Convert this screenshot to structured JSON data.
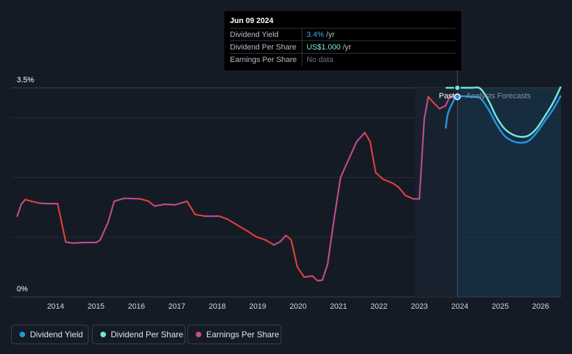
{
  "tooltip": {
    "date": "Jun 09 2024",
    "rows": [
      {
        "label": "Dividend Yield",
        "value": "3.4%",
        "unit": " /yr"
      },
      {
        "label": "Dividend Per Share",
        "value": "US$1.000",
        "unit": " /yr"
      },
      {
        "label": "Earnings Per Share",
        "value": "No data",
        "unit": ""
      }
    ]
  },
  "markers": {
    "past": "Past",
    "forecast": "Analysts Forecasts"
  },
  "legend": [
    {
      "label": "Dividend Yield",
      "color": "#2394df"
    },
    {
      "label": "Dividend Per Share",
      "color": "#6ee8d6"
    },
    {
      "label": "Earnings Per Share",
      "color": "#c04c93"
    }
  ],
  "chart_data": {
    "type": "line",
    "title": "",
    "xlabel": "",
    "ylabel": "",
    "x_ticks": [
      "2014",
      "2015",
      "2016",
      "2017",
      "2018",
      "2019",
      "2020",
      "2021",
      "2022",
      "2023",
      "2024",
      "2025",
      "2026"
    ],
    "y_tick_labels": [
      "0%",
      "3.5%"
    ],
    "xlim": [
      2013.4,
      2027.0
    ],
    "ylim": [
      0,
      3.5
    ],
    "past_split_x": 2024.44,
    "forecast_start_x": 2023.4,
    "colors": {
      "dividend_yield": "#2394df",
      "dividend_per_share": "#6ee8d6",
      "eps_up": "#c04c93",
      "eps_down": "#e0403f",
      "forecast_band": "#1c3a57"
    },
    "series": [
      {
        "name": "Earnings Per Share",
        "unit": "relative",
        "x": [
          2013.55,
          2013.65,
          2013.75,
          2013.9,
          2014.1,
          2014.3,
          2014.55,
          2014.75,
          2014.9,
          2015.2,
          2015.5,
          2015.6,
          2015.8,
          2015.95,
          2016.2,
          2016.6,
          2016.8,
          2016.95,
          2017.2,
          2017.45,
          2017.6,
          2017.75,
          2017.95,
          2018.2,
          2018.55,
          2018.75,
          2019.0,
          2019.25,
          2019.45,
          2019.7,
          2019.9,
          2020.05,
          2020.2,
          2020.33,
          2020.48,
          2020.65,
          2020.85,
          2020.98,
          2021.1,
          2021.23,
          2021.4,
          2021.55,
          2021.75,
          2021.95,
          2022.15,
          2022.28,
          2022.42,
          2022.6,
          2022.85,
          2022.98,
          2023.15,
          2023.35,
          2023.5,
          2023.62,
          2023.72,
          2023.85,
          2024.0,
          2024.15,
          2024.25,
          2024.44
        ],
        "y": [
          1.35,
          1.55,
          1.63,
          1.6,
          1.57,
          1.56,
          1.56,
          0.92,
          0.9,
          0.91,
          0.91,
          0.95,
          1.25,
          1.6,
          1.65,
          1.64,
          1.6,
          1.52,
          1.55,
          1.54,
          1.57,
          1.6,
          1.38,
          1.35,
          1.35,
          1.3,
          1.2,
          1.1,
          1.01,
          0.95,
          0.87,
          0.92,
          1.03,
          0.95,
          0.5,
          0.33,
          0.35,
          0.27,
          0.28,
          0.55,
          1.35,
          2.0,
          2.3,
          2.6,
          2.75,
          2.6,
          2.08,
          1.97,
          1.9,
          1.84,
          1.7,
          1.64,
          1.64,
          2.97,
          3.35,
          3.25,
          3.15,
          3.2,
          3.35,
          3.38
        ]
      },
      {
        "name": "Dividend Yield",
        "unit": "%",
        "x": [
          2024.15,
          2024.2,
          2024.3,
          2024.44,
          2024.8,
          2025.0,
          2025.2,
          2025.4,
          2025.6,
          2025.8,
          2026.0,
          2026.2,
          2026.4,
          2026.6,
          2026.8,
          2027.0
        ],
        "y": [
          2.82,
          3.05,
          3.22,
          3.35,
          3.35,
          3.33,
          3.15,
          2.9,
          2.7,
          2.61,
          2.58,
          2.61,
          2.75,
          2.94,
          3.13,
          3.37
        ]
      },
      {
        "name": "Dividend Per Share",
        "unit": "US$/yr",
        "x": [
          2024.15,
          2024.3,
          2024.44,
          2024.8,
          2025.0,
          2025.2,
          2025.4,
          2025.6,
          2025.8,
          2026.0,
          2026.2,
          2026.4,
          2026.6,
          2026.8,
          2027.0
        ],
        "y": [
          3.5,
          3.5,
          3.5,
          3.5,
          3.49,
          3.3,
          3.02,
          2.82,
          2.72,
          2.68,
          2.7,
          2.82,
          3.02,
          3.24,
          3.52
        ]
      }
    ]
  }
}
